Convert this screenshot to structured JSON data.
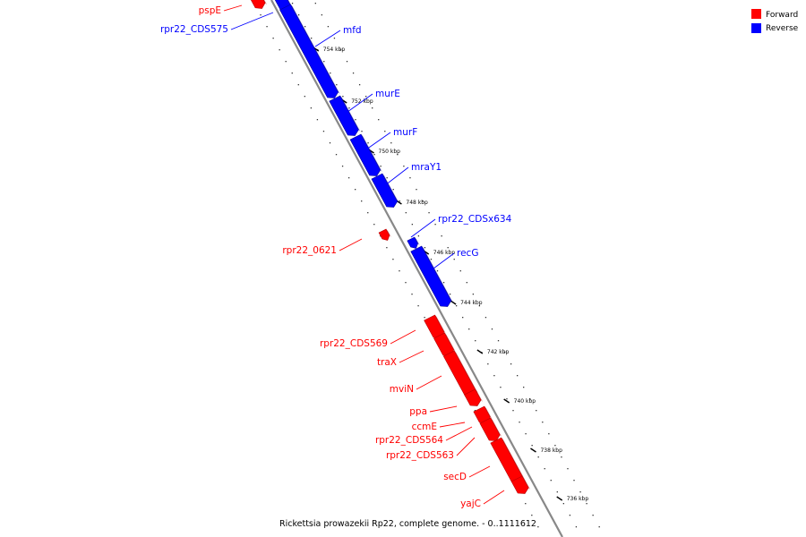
{
  "legend": {
    "forward": {
      "label": "Forward",
      "color": "#ff0000"
    },
    "reverse": {
      "label": "Reverse",
      "color": "#0000ff"
    }
  },
  "colors": {
    "forward": "#ff0000",
    "forward_shade": "#b40000",
    "reverse": "#0000ff",
    "reverse_shade": "#00009a",
    "backbone": "#888888"
  },
  "caption": "Rickettsia prowazekii Rp22, complete genome. - 0..1111612",
  "ticks": [
    "754 kbp",
    "752 kbp",
    "750 kbp",
    "748 kbp",
    "746 kbp",
    "744 kbp",
    "742 kbp",
    "740 kbp",
    "738 kbp",
    "736 kbp"
  ],
  "genes": [
    {
      "name": "pspE",
      "strand": "forward"
    },
    {
      "name": "rpr22_CDS575",
      "strand": "reverse"
    },
    {
      "name": "mfd",
      "strand": "reverse"
    },
    {
      "name": "murE",
      "strand": "reverse"
    },
    {
      "name": "murF",
      "strand": "reverse"
    },
    {
      "name": "mraY1",
      "strand": "reverse"
    },
    {
      "name": "rpr22_CDSx634",
      "strand": "reverse"
    },
    {
      "name": "rpr22_0621",
      "strand": "forward"
    },
    {
      "name": "recG",
      "strand": "reverse"
    },
    {
      "name": "rpr22_CDS569",
      "strand": "forward"
    },
    {
      "name": "traX",
      "strand": "forward"
    },
    {
      "name": "mviN",
      "strand": "forward"
    },
    {
      "name": "ppa",
      "strand": "forward"
    },
    {
      "name": "ccmE",
      "strand": "forward"
    },
    {
      "name": "rpr22_CDS564",
      "strand": "forward"
    },
    {
      "name": "rpr22_CDS563",
      "strand": "forward"
    },
    {
      "name": "secD",
      "strand": "forward"
    },
    {
      "name": "yajC",
      "strand": "forward"
    }
  ]
}
